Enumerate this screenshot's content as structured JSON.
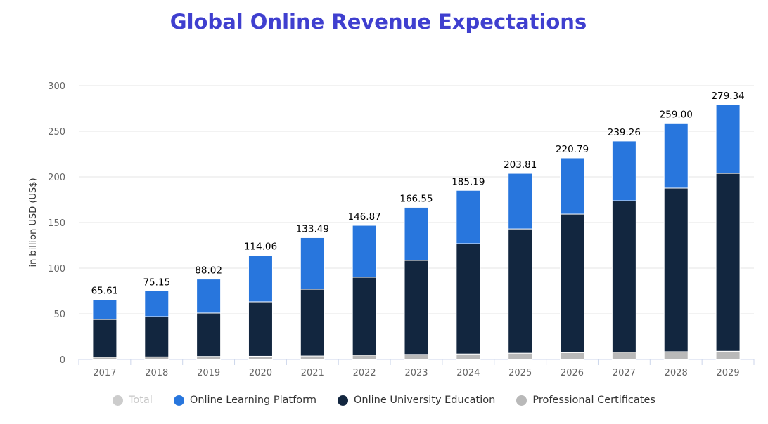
{
  "title": "Global Online Revenue Expectations",
  "chart_data": {
    "type": "bar",
    "stacked": true,
    "categories": [
      "2017",
      "2018",
      "2019",
      "2020",
      "2021",
      "2022",
      "2023",
      "2024",
      "2025",
      "2026",
      "2027",
      "2028",
      "2029"
    ],
    "series": [
      {
        "name": "Professional Certificates",
        "color": "#b9b9b9",
        "values": [
          2.5,
          2.8,
          3.3,
          3.5,
          3.8,
          4.8,
          5.5,
          6.0,
          6.8,
          7.5,
          8.0,
          8.5,
          9.0
        ]
      },
      {
        "name": "Online University Education",
        "color": "#12263f",
        "values": [
          41.3,
          44.1,
          47.5,
          59.6,
          73.1,
          85.2,
          103.0,
          120.9,
          136.2,
          151.7,
          165.8,
          179.2,
          194.8
        ]
      },
      {
        "name": "Online Learning Platform",
        "color": "#2876dd",
        "values": [
          21.8,
          28.2,
          37.2,
          51.0,
          56.6,
          56.9,
          58.1,
          58.3,
          60.8,
          61.6,
          65.5,
          71.3,
          75.5
        ]
      }
    ],
    "totals": [
      "65.61",
      "75.15",
      "88.02",
      "114.06",
      "133.49",
      "146.87",
      "166.55",
      "185.19",
      "203.81",
      "220.79",
      "239.26",
      "259.00",
      "279.34"
    ],
    "ylabel": "in billion USD (US$)",
    "xlabel": "",
    "ylim": [
      0,
      300
    ],
    "yticks": [
      0,
      50,
      100,
      150,
      200,
      250,
      300
    ],
    "grid": true,
    "legend_position": "bottom",
    "legend": [
      {
        "name": "Total",
        "color": "#cccccc",
        "hidden": true
      },
      {
        "name": "Online Learning Platform",
        "color": "#2876dd"
      },
      {
        "name": "Online University Education",
        "color": "#12263f"
      },
      {
        "name": "Professional Certificates",
        "color": "#b9b9b9"
      }
    ]
  }
}
